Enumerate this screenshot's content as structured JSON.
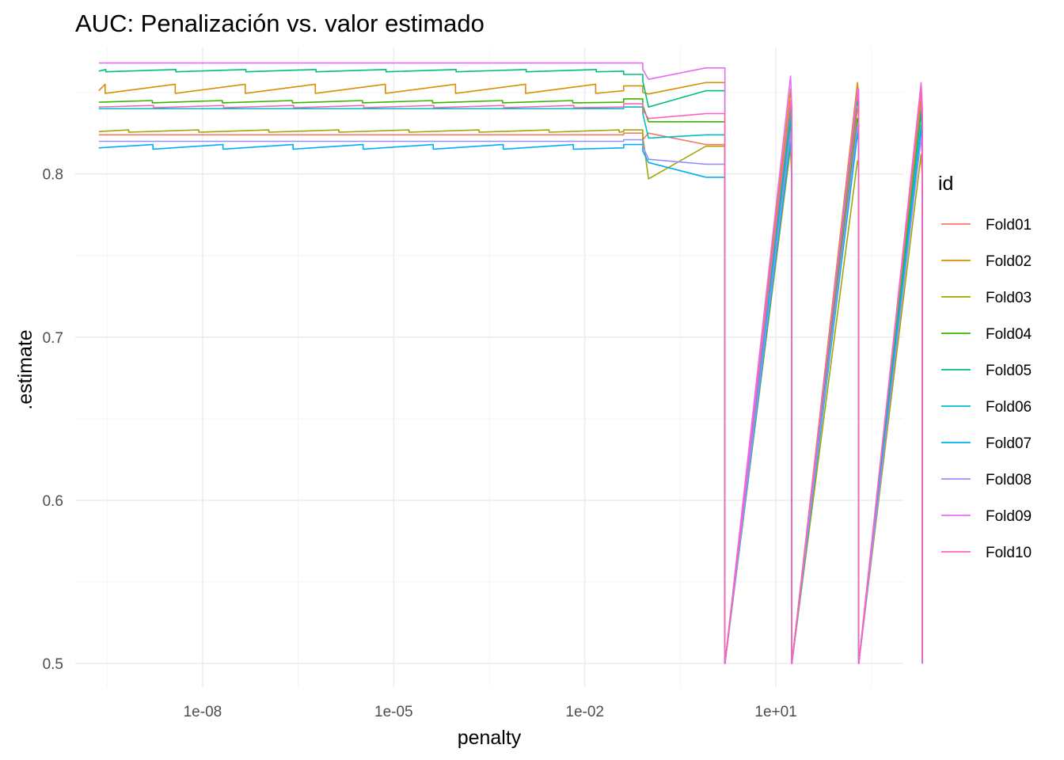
{
  "chart_data": {
    "type": "line",
    "title": "AUC: Penalización vs. valor estimado",
    "xlabel": "penalty",
    "ylabel": ".estimate",
    "x_scale": "log10",
    "xlim": [
      1e-10,
      1000
    ],
    "ylim": [
      0.4855,
      0.8775
    ],
    "grid": true,
    "legend_placement": "right",
    "legend_title": "id",
    "x_ticks": [
      {
        "value": 1e-08,
        "label": "1e-08"
      },
      {
        "value": 1e-05,
        "label": "1e-05"
      },
      {
        "value": 0.01,
        "label": "1e-02"
      },
      {
        "value": 10,
        "label": "1e+01"
      }
    ],
    "y_ticks": [
      {
        "value": 0.5,
        "label": "0.5"
      },
      {
        "value": 0.6,
        "label": "0.6"
      },
      {
        "value": 0.7,
        "label": "0.7"
      },
      {
        "value": 0.8,
        "label": "0.8"
      }
    ],
    "series": [
      {
        "name": "Fold01",
        "color": "#F8766D",
        "plateau": 0.824,
        "amp": 0.0,
        "mid": [
          0.825,
          0.825,
          0.818
        ],
        "step": 0.836
      },
      {
        "name": "Fold02",
        "color": "#D89000",
        "plateau": 0.851,
        "amp": 0.004,
        "mid": [
          0.854,
          0.849,
          0.856
        ],
        "step": 0.848
      },
      {
        "name": "Fold03",
        "color": "#A3A500",
        "plateau": 0.826,
        "amp": 0.001,
        "mid": [
          0.827,
          0.797,
          0.817
        ],
        "step": 0.808
      },
      {
        "name": "Fold04",
        "color": "#39B600",
        "plateau": 0.844,
        "amp": 0.001,
        "mid": [
          0.846,
          0.832,
          0.832
        ],
        "step": 0.83
      },
      {
        "name": "Fold05",
        "color": "#00BF7D",
        "plateau": 0.863,
        "amp": 0.001,
        "mid": [
          0.861,
          0.841,
          0.851
        ],
        "step": 0.838
      },
      {
        "name": "Fold06",
        "color": "#00BFC4",
        "plateau": 0.84,
        "amp": 0.0,
        "mid": [
          0.841,
          0.822,
          0.824
        ],
        "step": 0.826
      },
      {
        "name": "Fold07",
        "color": "#00B0F6",
        "plateau": 0.816,
        "amp": 0.002,
        "mid": [
          0.818,
          0.807,
          0.798
        ],
        "step": 0.82
      },
      {
        "name": "Fold08",
        "color": "#9590FF",
        "plateau": 0.82,
        "amp": 0.0,
        "mid": [
          0.821,
          0.809,
          0.806
        ],
        "step": 0.822
      },
      {
        "name": "Fold09",
        "color": "#E76BF3",
        "plateau": 0.868,
        "amp": 0.0,
        "mid": [
          0.868,
          0.858,
          0.865
        ],
        "step": 0.852
      },
      {
        "name": "Fold10",
        "color": "#FF62BC",
        "plateau": 0.841,
        "amp": 0.001,
        "mid": [
          0.843,
          0.834,
          0.837
        ],
        "step": 0.845
      }
    ]
  }
}
